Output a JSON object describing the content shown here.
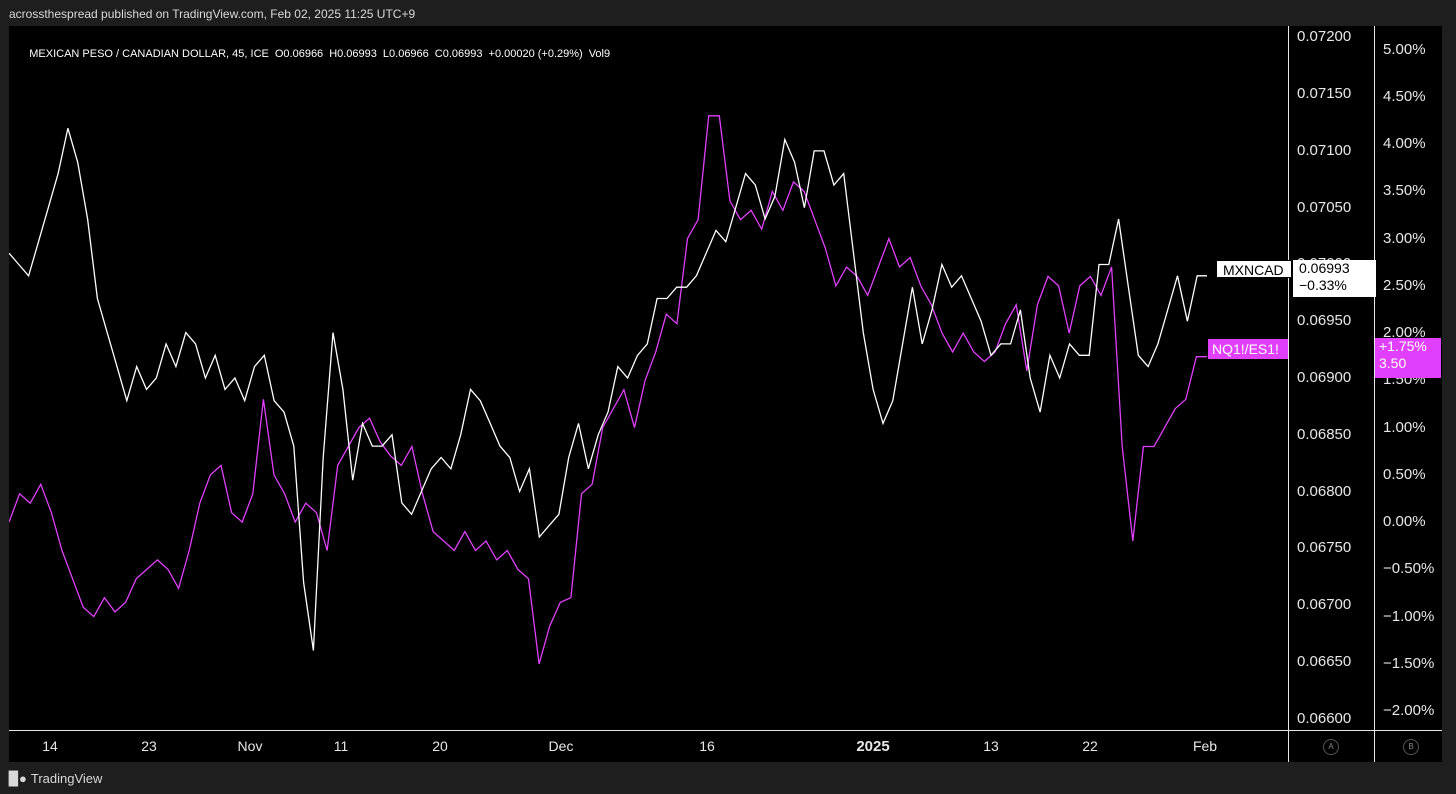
{
  "header": {
    "published_text": "acrossthespread published on TradingView.com, Feb 02, 2025 11:25 UTC+9"
  },
  "legend": {
    "symbol": "MEXICAN PESO / CANADIAN DOLLAR, 45, ICE",
    "open": "O0.06966",
    "high": "H0.06993",
    "low": "L0.06966",
    "close": "C0.06993",
    "change": "+0.00020 (+0.29%)",
    "indicator": "Vol9"
  },
  "colors": {
    "background": "#000000",
    "mxncad": "#ffffff",
    "nq_es": "#e040fb",
    "separator": "#e6e6e6"
  },
  "tags": {
    "mxncad_label": "MXNCAD",
    "mxncad_price": "0.06993",
    "mxncad_change": "−0.33%",
    "nq_label": "NQ1!/ES1!",
    "nq_pct": "+1.75%",
    "nq_value": "3.50"
  },
  "scale_buttons": {
    "a": "A",
    "b": "B"
  },
  "footer": {
    "brand": "TradingView",
    "logo_icon": "tradingview-logo-icon"
  },
  "chart_data": [
    {
      "type": "line",
      "title": "",
      "x_tick_labels": [
        "14",
        "23",
        "Nov",
        "11",
        "20",
        "Dec",
        "16",
        "2025",
        "13",
        "22",
        "Feb"
      ],
      "y_axis_left_labels": [
        "0.07200",
        "0.07150",
        "0.07100",
        "0.07050",
        "0.07000",
        "0.06950",
        "0.06900",
        "0.06850",
        "0.06800",
        "0.06750",
        "0.06700",
        "0.06650",
        "0.06600"
      ],
      "y_axis_right_labels": [
        "5.00%",
        "4.50%",
        "4.00%",
        "3.50%",
        "3.00%",
        "2.50%",
        "2.00%",
        "1.50%",
        "1.00%",
        "0.50%",
        "0.00%",
        "−0.50%",
        "−1.00%",
        "−1.50%",
        "−2.00%"
      ],
      "ylim_price": [
        0.0659,
        0.0721
      ],
      "ylim_pct": [
        -2.2,
        5.25
      ],
      "grid": false,
      "series": [
        {
          "name": "MXNCAD",
          "color": "#ffffff",
          "values": [
            0.0701,
            0.07,
            0.0699,
            0.0702,
            0.0705,
            0.0708,
            0.0712,
            0.0709,
            0.0704,
            0.0697,
            0.0694,
            0.0691,
            0.0688,
            0.0691,
            0.0689,
            0.069,
            0.0693,
            0.0691,
            0.0694,
            0.0693,
            0.069,
            0.0692,
            0.0689,
            0.069,
            0.0688,
            0.0691,
            0.0692,
            0.0688,
            0.0687,
            0.0684,
            0.0672,
            0.0666,
            0.0683,
            0.0694,
            0.0689,
            0.0681,
            0.0686,
            0.0684,
            0.0684,
            0.0685,
            0.0679,
            0.0678,
            0.068,
            0.0682,
            0.0683,
            0.0682,
            0.0685,
            0.0689,
            0.0688,
            0.0686,
            0.0684,
            0.0683,
            0.068,
            0.0682,
            0.0676,
            0.0677,
            0.0678,
            0.0683,
            0.0686,
            0.0682,
            0.0685,
            0.0687,
            0.0691,
            0.069,
            0.0692,
            0.0693,
            0.0697,
            0.0697,
            0.0698,
            0.0698,
            0.0699,
            0.0701,
            0.0703,
            0.0702,
            0.0705,
            0.0708,
            0.0707,
            0.0704,
            0.0706,
            0.0711,
            0.0709,
            0.0705,
            0.071,
            0.071,
            0.0707,
            0.0708,
            0.0701,
            0.0694,
            0.0689,
            0.0686,
            0.0688,
            0.0693,
            0.0698,
            0.0693,
            0.0696,
            0.07,
            0.0698,
            0.0699,
            0.0697,
            0.0695,
            0.0692,
            0.0693,
            0.0693,
            0.0696,
            0.069,
            0.0687,
            0.0692,
            0.069,
            0.0693,
            0.0692,
            0.0692,
            0.07,
            0.07,
            0.0704,
            0.0698,
            0.0692,
            0.0691,
            0.0693,
            0.0696,
            0.0699,
            0.0695,
            0.0699,
            0.0699
          ]
        },
        {
          "name": "NQ1!/ES1!",
          "color": "#e040fb",
          "values": [
            0.0,
            0.3,
            0.2,
            0.4,
            0.1,
            -0.3,
            -0.6,
            -0.9,
            -1.0,
            -0.8,
            -0.95,
            -0.85,
            -0.6,
            -0.5,
            -0.4,
            -0.5,
            -0.7,
            -0.3,
            0.2,
            0.5,
            0.6,
            0.1,
            0.0,
            0.3,
            1.3,
            0.5,
            0.3,
            0.0,
            0.2,
            0.1,
            -0.3,
            0.6,
            0.8,
            1.0,
            1.1,
            0.85,
            0.7,
            0.6,
            0.8,
            0.3,
            -0.1,
            -0.2,
            -0.3,
            -0.1,
            -0.3,
            -0.2,
            -0.4,
            -0.3,
            -0.5,
            -0.6,
            -1.5,
            -1.1,
            -0.85,
            -0.8,
            0.3,
            0.4,
            1.0,
            1.2,
            1.4,
            1.0,
            1.5,
            1.8,
            2.2,
            2.1,
            3.0,
            3.2,
            4.3,
            4.3,
            3.4,
            3.2,
            3.3,
            3.1,
            3.5,
            3.3,
            3.6,
            3.5,
            3.2,
            2.9,
            2.5,
            2.7,
            2.6,
            2.4,
            2.7,
            3.0,
            2.7,
            2.8,
            2.5,
            2.3,
            2.0,
            1.8,
            2.0,
            1.8,
            1.7,
            1.8,
            2.1,
            2.3,
            1.6,
            2.3,
            2.6,
            2.5,
            2.0,
            2.5,
            2.6,
            2.4,
            2.7,
            0.8,
            -0.2,
            0.8,
            0.8,
            1.0,
            1.2,
            1.3,
            1.75,
            1.75
          ]
        }
      ]
    }
  ]
}
